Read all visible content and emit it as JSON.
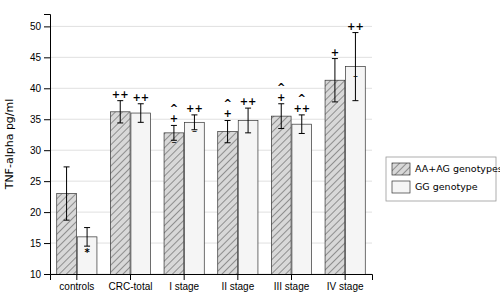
{
  "chart_data": {
    "type": "bar",
    "categories": [
      "controls",
      "CRC-total",
      "I stage",
      "II stage",
      "III stage",
      "IV stage"
    ],
    "series": [
      {
        "name": "AA+AG genotypes",
        "color": "#d8d8d8",
        "values": [
          23.0,
          36.2,
          32.8,
          33.0,
          35.5,
          41.3
        ],
        "errors": [
          4.3,
          1.8,
          1.2,
          1.8,
          2.0,
          3.5
        ]
      },
      {
        "name": "GG genotype",
        "color": "#f5f5f5",
        "values": [
          16.0,
          36.0,
          34.5,
          34.8,
          34.2,
          43.5
        ],
        "errors": [
          1.5,
          1.5,
          1.2,
          2.0,
          1.5,
          5.5
        ]
      }
    ],
    "ylabel": "TNF-alpha pg/ml",
    "ylim": [
      10,
      52
    ],
    "yticks": [
      10,
      15,
      20,
      25,
      30,
      35,
      40,
      45,
      50
    ],
    "grid": true,
    "legend": "right",
    "annotations": [
      {
        "text": "++",
        "category": 1,
        "series": 0,
        "position": "above"
      },
      {
        "text": "+",
        "category": 2,
        "series": 0,
        "position": "above"
      },
      {
        "text": "^",
        "category": 2,
        "series": 0,
        "position": "above"
      },
      {
        "text": "–",
        "category": 2,
        "series": 0,
        "position": "inside"
      },
      {
        "text": "+",
        "category": 3,
        "series": 0,
        "position": "above"
      },
      {
        "text": "^",
        "category": 3,
        "series": 0,
        "position": "above"
      },
      {
        "text": "+",
        "category": 4,
        "series": 0,
        "position": "above"
      },
      {
        "text": "^",
        "category": 4,
        "series": 0,
        "position": "above"
      },
      {
        "text": "+",
        "category": 5,
        "series": 0,
        "position": "above"
      },
      {
        "text": "*",
        "category": 0,
        "series": 1,
        "position": "below"
      },
      {
        "text": "++",
        "category": 1,
        "series": 1,
        "position": "above"
      },
      {
        "text": "++",
        "category": 2,
        "series": 1,
        "position": "above"
      },
      {
        "text": "–",
        "category": 2,
        "series": 1,
        "position": "inside"
      },
      {
        "text": "++",
        "category": 3,
        "series": 1,
        "position": "above"
      },
      {
        "text": "++",
        "category": 4,
        "series": 1,
        "position": "above"
      },
      {
        "text": "^",
        "category": 4,
        "series": 1,
        "position": "above"
      },
      {
        "text": "++",
        "category": 5,
        "series": 1,
        "position": "above"
      },
      {
        "text": "–",
        "category": 5,
        "series": 1,
        "position": "inside"
      }
    ]
  }
}
